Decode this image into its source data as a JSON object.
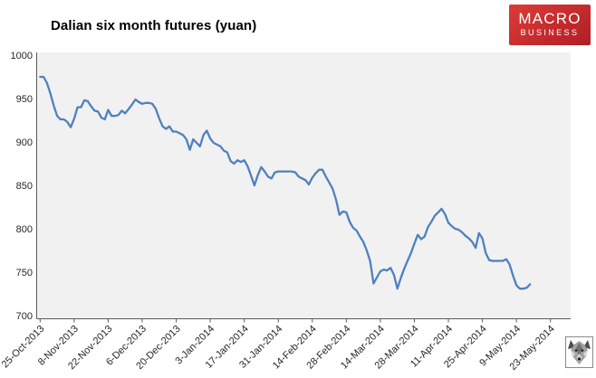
{
  "title": "Dalian six month futures (yuan)",
  "logo": {
    "line1": "MACRO",
    "line2": "BUSINESS",
    "bg_top": "#dd3c36",
    "bg_bottom": "#b01e26",
    "text_color": "#ffffff"
  },
  "chart_data": {
    "type": "line",
    "title": "Dalian six month futures (yuan)",
    "xlabel": "",
    "ylabel": "",
    "ylim": [
      700,
      1000
    ],
    "yticks": [
      1000,
      950,
      900,
      850,
      800,
      750,
      700
    ],
    "grid": false,
    "legend": "none",
    "plot_bg": "#f1f1f1",
    "axis_color": "#595959",
    "label_color": "#262626",
    "xtick_labels": [
      "25-Oct-2013",
      "8-Nov-2013",
      "22-Nov-2013",
      "6-Dec-2013",
      "20-Dec-2013",
      "3-Jan-2014",
      "17-Jan-2014",
      "31-Jan-2014",
      "14-Feb-2014",
      "28-Feb-2014",
      "14-Mar-2014",
      "28-Mar-2014",
      "11-Apr-2014",
      "25-Apr-2014",
      "9-May-2014",
      "23-May-2014"
    ],
    "points_per_tick": 10,
    "x_axis_span_points": 150,
    "series": [
      {
        "name": "Dalian six month futures (yuan)",
        "color": "#4f81bd",
        "values": [
          975,
          975,
          968,
          956,
          942,
          930,
          926,
          926,
          923,
          917,
          927,
          940,
          940,
          948,
          947,
          941,
          936,
          935,
          928,
          926,
          937,
          930,
          930,
          931,
          936,
          933,
          938,
          943,
          949,
          946,
          944,
          945,
          945,
          944,
          938,
          927,
          918,
          915,
          918,
          912,
          912,
          910,
          908,
          903,
          891,
          903,
          899,
          895,
          908,
          913,
          904,
          899,
          897,
          895,
          890,
          888,
          878,
          875,
          879,
          877,
          879,
          872,
          861,
          850,
          862,
          871,
          866,
          860,
          858,
          865,
          866,
          866,
          866,
          866,
          866,
          865,
          860,
          858,
          856,
          851,
          859,
          864,
          868,
          868,
          860,
          853,
          846,
          833,
          816,
          820,
          819,
          808,
          801,
          798,
          791,
          785,
          775,
          763,
          737,
          744,
          751,
          753,
          752,
          755,
          747,
          731,
          743,
          754,
          763,
          772,
          783,
          793,
          788,
          791,
          802,
          808,
          815,
          819,
          823,
          817,
          807,
          803,
          800,
          799,
          796,
          792,
          789,
          785,
          778,
          795,
          789,
          772,
          764,
          763,
          763,
          763,
          763,
          765,
          759,
          746,
          735,
          731,
          731,
          732,
          736
        ]
      }
    ]
  },
  "badge": {
    "name": "wolf-icon"
  }
}
